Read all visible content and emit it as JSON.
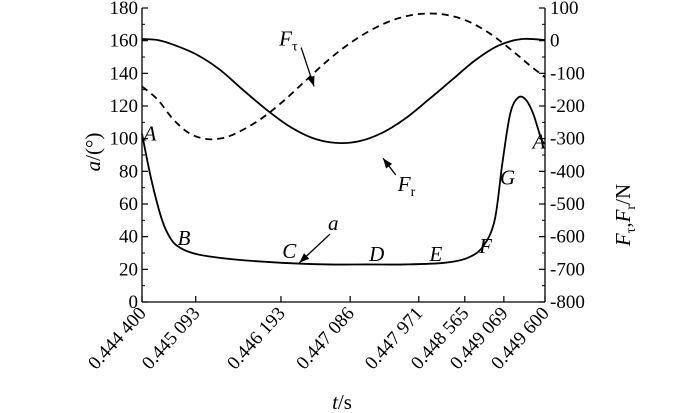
{
  "chart_data": {
    "type": "line",
    "x_label": {
      "main": "t",
      "rest": "/s"
    },
    "y_left_label": {
      "main": "a",
      "rest": "/(°)"
    },
    "y_right_label": {
      "F1": "F",
      "s1": "τ",
      "sep": ",",
      "F2": "F",
      "s2": "r",
      "rest": "/N"
    },
    "x_ticks": [
      "0.444 400",
      "0.445 093",
      "0.446 193",
      "0.447 086",
      "0.447 971",
      "0.448 565",
      "0.449 069",
      "0.449 600"
    ],
    "x_tick_values": [
      0.4444,
      0.445093,
      0.446193,
      0.447086,
      0.447971,
      0.448565,
      0.449069,
      0.4496
    ],
    "xlim": [
      0.4444,
      0.4496
    ],
    "y_left_ticks": [
      "0",
      "20",
      "40",
      "60",
      "80",
      "100",
      "120",
      "140",
      "160",
      "180"
    ],
    "y_left_lim": [
      0,
      180
    ],
    "y_right_ticks": [
      "100",
      "0",
      "-100",
      "-200",
      "-300",
      "-400",
      "-500",
      "-600",
      "-700",
      "-800"
    ],
    "y_right_lim": [
      -800,
      100
    ],
    "series": [
      {
        "name": "a",
        "axis": "left",
        "style": "solid",
        "x": [
          0.4444,
          0.44452,
          0.44466,
          0.44478,
          0.4449,
          0.44505,
          0.44525,
          0.4456,
          0.4462,
          0.4468,
          0.4473,
          0.4478,
          0.4483,
          0.4486,
          0.4488,
          0.44895,
          0.44905,
          0.44915,
          0.44925,
          0.44935,
          0.44945,
          0.44955,
          0.4496
        ],
        "y": [
          103,
          75,
          50,
          38,
          33,
          30,
          28,
          26,
          24,
          23,
          23,
          23,
          24,
          27,
          34,
          50,
          85,
          115,
          125,
          124,
          115,
          100,
          97
        ]
      },
      {
        "name": "Fr",
        "axis": "right",
        "style": "solid",
        "x": [
          0.4444,
          0.4446,
          0.4448,
          0.4451,
          0.4454,
          0.4457,
          0.446,
          0.4463,
          0.4466,
          0.4469,
          0.4472,
          0.4475,
          0.4478,
          0.4481,
          0.4484,
          0.4487,
          0.449,
          0.4493,
          0.4496
        ],
        "y": [
          5,
          2,
          -12,
          -42,
          -88,
          -150,
          -210,
          -262,
          -298,
          -313,
          -308,
          -282,
          -238,
          -180,
          -120,
          -60,
          -15,
          5,
          2
        ]
      },
      {
        "name": "Fτ",
        "axis": "right",
        "style": "dashed",
        "x": [
          0.4444,
          0.4446,
          0.4448,
          0.445,
          0.4452,
          0.4454,
          0.4456,
          0.4459,
          0.4462,
          0.4465,
          0.4468,
          0.4471,
          0.4474,
          0.4477,
          0.448,
          0.4483,
          0.4486,
          0.4489,
          0.4492,
          0.4494,
          0.4496
        ],
        "y": [
          -140,
          -180,
          -240,
          -282,
          -300,
          -300,
          -285,
          -245,
          -190,
          -125,
          -60,
          -5,
          38,
          68,
          82,
          80,
          60,
          20,
          -35,
          -75,
          -112
        ]
      }
    ],
    "point_labels": [
      {
        "text": "A",
        "x": 0.44442,
        "y": 99
      },
      {
        "text": "B",
        "x": 0.44486,
        "y": 35
      },
      {
        "text": "C",
        "x": 0.44621,
        "y": 27
      },
      {
        "text": "D",
        "x": 0.44733,
        "y": 25
      },
      {
        "text": "E",
        "x": 0.44811,
        "y": 25
      },
      {
        "text": "F",
        "x": 0.44875,
        "y": 30
      },
      {
        "text": "G",
        "x": 0.44902,
        "y": 72
      },
      {
        "text": "A",
        "x": 0.44944,
        "y": 94
      }
    ],
    "series_labels": [
      {
        "main": "a",
        "sub": "",
        "text_x": 0.4468,
        "text_y": 44,
        "arrow_to_x": 0.44643,
        "arrow_to_y": 24
      },
      {
        "main": "F",
        "sub": "τ",
        "text_x": 0.44617,
        "text_y": 157,
        "arrow_to_x": 0.44662,
        "arrow_to_y": 132
      },
      {
        "main": "F",
        "sub": "r",
        "text_x": 0.4477,
        "text_y": 68,
        "arrow_to_x": 0.44751,
        "arrow_to_y": 88
      }
    ]
  }
}
